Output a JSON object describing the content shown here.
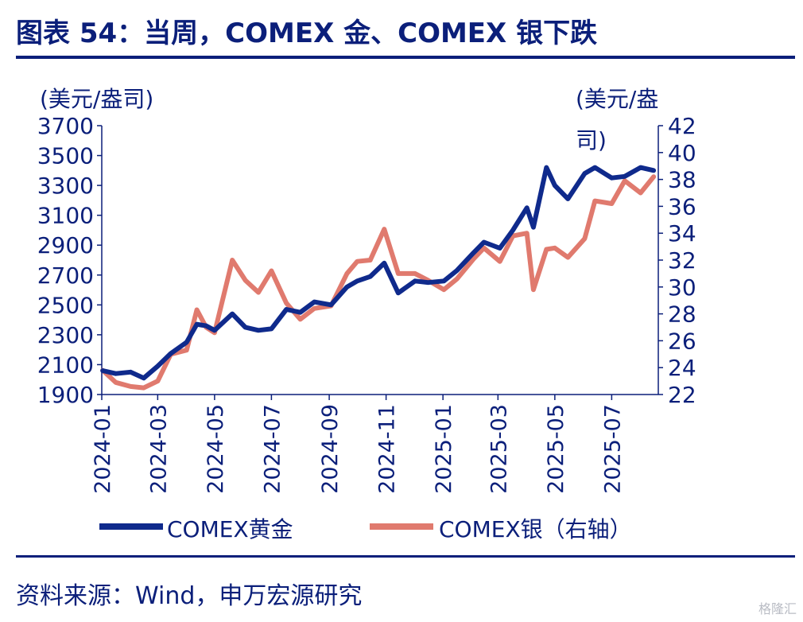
{
  "header": {
    "title": "图表 54：当周，COMEX 金、COMEX 银下跌"
  },
  "footer": {
    "source": "资料来源：Wind，申万宏源研究"
  },
  "watermark": {
    "text": "格隆汇"
  },
  "colors": {
    "gold": "#0f2a8c",
    "silver": "#e07a6e",
    "text": "#0b1f7a",
    "axis": "#0b1f7a"
  },
  "chart_data": {
    "type": "line",
    "left_unit": "(美元/盎司)",
    "right_unit_line1": "(美元/盎",
    "right_unit_line2": "司)",
    "y_left": {
      "min": 1900,
      "max": 3700,
      "ticks": [
        "1900",
        "2100",
        "2300",
        "2500",
        "2700",
        "2900",
        "3100",
        "3300",
        "3500",
        "3700"
      ]
    },
    "y_right": {
      "min": 22,
      "max": 42,
      "ticks": [
        "22",
        "24",
        "26",
        "28",
        "30",
        "32",
        "34",
        "36",
        "38",
        "40",
        "42"
      ]
    },
    "x_ticks": [
      "2024-01",
      "2024-03",
      "2024-05",
      "2024-07",
      "2024-09",
      "2024-11",
      "2025-01",
      "2025-03",
      "2025-05",
      "2025-07"
    ],
    "legend": {
      "gold": "COMEX黄金",
      "silver": "COMEX银（右轴）"
    },
    "series": [
      {
        "name": "COMEX黄金",
        "axis": "left",
        "x": [
          "2024-01-02",
          "2024-01-16",
          "2024-02-01",
          "2024-02-15",
          "2024-03-01",
          "2024-03-15",
          "2024-04-01",
          "2024-04-12",
          "2024-04-22",
          "2024-05-01",
          "2024-05-20",
          "2024-06-03",
          "2024-06-17",
          "2024-07-01",
          "2024-07-17",
          "2024-08-01",
          "2024-08-16",
          "2024-09-03",
          "2024-09-20",
          "2024-10-01",
          "2024-10-15",
          "2024-10-30",
          "2024-11-14",
          "2024-12-02",
          "2024-12-16",
          "2025-01-02",
          "2025-01-16",
          "2025-02-03",
          "2025-02-14",
          "2025-03-03",
          "2025-03-17",
          "2025-04-01",
          "2025-04-08",
          "2025-04-22",
          "2025-05-01",
          "2025-05-15",
          "2025-06-02",
          "2025-06-13",
          "2025-07-01",
          "2025-07-15",
          "2025-08-01",
          "2025-08-15"
        ],
        "values": [
          2060,
          2040,
          2050,
          2010,
          2090,
          2175,
          2250,
          2370,
          2360,
          2330,
          2440,
          2350,
          2330,
          2340,
          2470,
          2450,
          2520,
          2500,
          2620,
          2660,
          2690,
          2780,
          2580,
          2660,
          2650,
          2660,
          2730,
          2850,
          2920,
          2880,
          3000,
          3150,
          3020,
          3420,
          3300,
          3210,
          3380,
          3420,
          3350,
          3360,
          3420,
          3400
        ]
      },
      {
        "name": "COMEX银（右轴）",
        "axis": "right",
        "x": [
          "2024-01-02",
          "2024-01-16",
          "2024-02-01",
          "2024-02-15",
          "2024-03-01",
          "2024-03-15",
          "2024-04-01",
          "2024-04-12",
          "2024-04-22",
          "2024-05-01",
          "2024-05-20",
          "2024-06-03",
          "2024-06-17",
          "2024-07-01",
          "2024-07-17",
          "2024-08-01",
          "2024-08-16",
          "2024-09-03",
          "2024-09-20",
          "2024-10-01",
          "2024-10-15",
          "2024-10-30",
          "2024-11-14",
          "2024-12-02",
          "2024-12-16",
          "2025-01-02",
          "2025-01-16",
          "2025-02-03",
          "2025-02-14",
          "2025-03-03",
          "2025-03-17",
          "2025-04-01",
          "2025-04-08",
          "2025-04-22",
          "2025-05-01",
          "2025-05-15",
          "2025-06-02",
          "2025-06-13",
          "2025-07-01",
          "2025-07-15",
          "2025-08-01",
          "2025-08-15"
        ],
        "values": [
          23.8,
          22.9,
          22.6,
          22.5,
          23.0,
          25.0,
          25.3,
          28.3,
          27.0,
          26.6,
          32.0,
          30.5,
          29.6,
          31.2,
          28.8,
          27.6,
          28.4,
          28.6,
          31.0,
          31.9,
          32.0,
          34.3,
          31.0,
          31.0,
          30.5,
          29.8,
          30.6,
          32.1,
          32.9,
          31.9,
          33.8,
          34.0,
          29.8,
          32.8,
          32.9,
          32.2,
          33.6,
          36.4,
          36.2,
          37.9,
          37.0,
          38.2
        ]
      }
    ]
  }
}
